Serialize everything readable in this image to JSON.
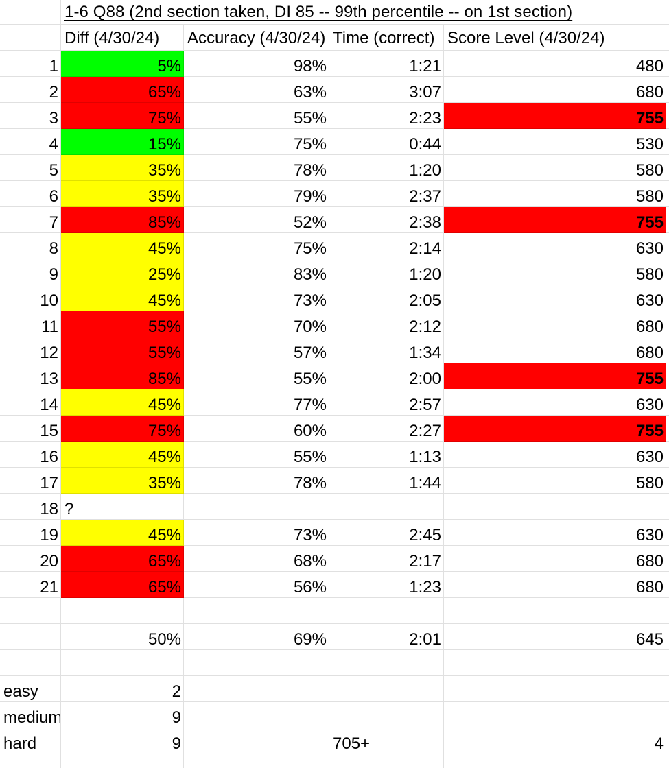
{
  "palette": {
    "green": "#00ff00",
    "red": "#ff0000",
    "yellow": "#ffff00",
    "background": "#ffffff",
    "text": "#000000",
    "gridline": "#e2e2e2"
  },
  "title_row": {
    "title": "1-6 Q88 (2nd section taken, DI 85 -- 99th percentile -- on 1st section)"
  },
  "header_row": {
    "diff": "Diff (4/30/24)",
    "accuracy": "Accuracy (4/30/24)",
    "time": "Time (correct)",
    "score": "Score Level (4/30/24)"
  },
  "rows": [
    {
      "num": "1",
      "diff": "5%",
      "diff_fill": "green",
      "accuracy": "98%",
      "time": "1:21",
      "score": "480",
      "score_fill": "",
      "score_bold": false
    },
    {
      "num": "2",
      "diff": "65%",
      "diff_fill": "red",
      "accuracy": "63%",
      "time": "3:07",
      "score": "680",
      "score_fill": "",
      "score_bold": false
    },
    {
      "num": "3",
      "diff": "75%",
      "diff_fill": "red",
      "accuracy": "55%",
      "time": "2:23",
      "score": "755",
      "score_fill": "red",
      "score_bold": true
    },
    {
      "num": "4",
      "diff": "15%",
      "diff_fill": "green",
      "accuracy": "75%",
      "time": "0:44",
      "score": "530",
      "score_fill": "",
      "score_bold": false
    },
    {
      "num": "5",
      "diff": "35%",
      "diff_fill": "yellow",
      "accuracy": "78%",
      "time": "1:20",
      "score": "580",
      "score_fill": "",
      "score_bold": false
    },
    {
      "num": "6",
      "diff": "35%",
      "diff_fill": "yellow",
      "accuracy": "79%",
      "time": "2:37",
      "score": "580",
      "score_fill": "",
      "score_bold": false
    },
    {
      "num": "7",
      "diff": "85%",
      "diff_fill": "red",
      "accuracy": "52%",
      "time": "2:38",
      "score": "755",
      "score_fill": "red",
      "score_bold": true
    },
    {
      "num": "8",
      "diff": "45%",
      "diff_fill": "yellow",
      "accuracy": "75%",
      "time": "2:14",
      "score": "630",
      "score_fill": "",
      "score_bold": false
    },
    {
      "num": "9",
      "diff": "25%",
      "diff_fill": "yellow",
      "accuracy": "83%",
      "time": "1:20",
      "score": "580",
      "score_fill": "",
      "score_bold": false
    },
    {
      "num": "10",
      "diff": "45%",
      "diff_fill": "yellow",
      "accuracy": "73%",
      "time": "2:05",
      "score": "630",
      "score_fill": "",
      "score_bold": false
    },
    {
      "num": "11",
      "diff": "55%",
      "diff_fill": "red",
      "accuracy": "70%",
      "time": "2:12",
      "score": "680",
      "score_fill": "",
      "score_bold": false
    },
    {
      "num": "12",
      "diff": "55%",
      "diff_fill": "red",
      "accuracy": "57%",
      "time": "1:34",
      "score": "680",
      "score_fill": "",
      "score_bold": false
    },
    {
      "num": "13",
      "diff": "85%",
      "diff_fill": "red",
      "accuracy": "55%",
      "time": "2:00",
      "score": "755",
      "score_fill": "red",
      "score_bold": true
    },
    {
      "num": "14",
      "diff": "45%",
      "diff_fill": "yellow",
      "accuracy": "77%",
      "time": "2:57",
      "score": "630",
      "score_fill": "",
      "score_bold": false
    },
    {
      "num": "15",
      "diff": "75%",
      "diff_fill": "red",
      "accuracy": "60%",
      "time": "2:27",
      "score": "755",
      "score_fill": "red",
      "score_bold": true
    },
    {
      "num": "16",
      "diff": "45%",
      "diff_fill": "yellow",
      "accuracy": "55%",
      "time": "1:13",
      "score": "630",
      "score_fill": "",
      "score_bold": false
    },
    {
      "num": "17",
      "diff": "35%",
      "diff_fill": "yellow",
      "accuracy": "78%",
      "time": "1:44",
      "score": "580",
      "score_fill": "",
      "score_bold": false
    },
    {
      "num": "18",
      "diff": "?",
      "diff_fill": "",
      "accuracy": "",
      "time": "",
      "score": "",
      "score_fill": "",
      "score_bold": false
    },
    {
      "num": "19",
      "diff": "45%",
      "diff_fill": "yellow",
      "accuracy": "73%",
      "time": "2:45",
      "score": "630",
      "score_fill": "",
      "score_bold": false
    },
    {
      "num": "20",
      "diff": "65%",
      "diff_fill": "red",
      "accuracy": "68%",
      "time": "2:17",
      "score": "680",
      "score_fill": "",
      "score_bold": false
    },
    {
      "num": "21",
      "diff": "65%",
      "diff_fill": "red",
      "accuracy": "56%",
      "time": "1:23",
      "score": "680",
      "score_fill": "",
      "score_bold": false
    }
  ],
  "summary_row": {
    "diff": "50%",
    "accuracy": "69%",
    "time": "2:01",
    "score": "645"
  },
  "difficulty_rows": [
    {
      "label": "easy",
      "count": "2",
      "time": "",
      "score": ""
    },
    {
      "label": "medium",
      "count": "9",
      "time": "",
      "score": ""
    },
    {
      "label": "hard",
      "count": "9",
      "time": "705+",
      "score": "4"
    }
  ]
}
